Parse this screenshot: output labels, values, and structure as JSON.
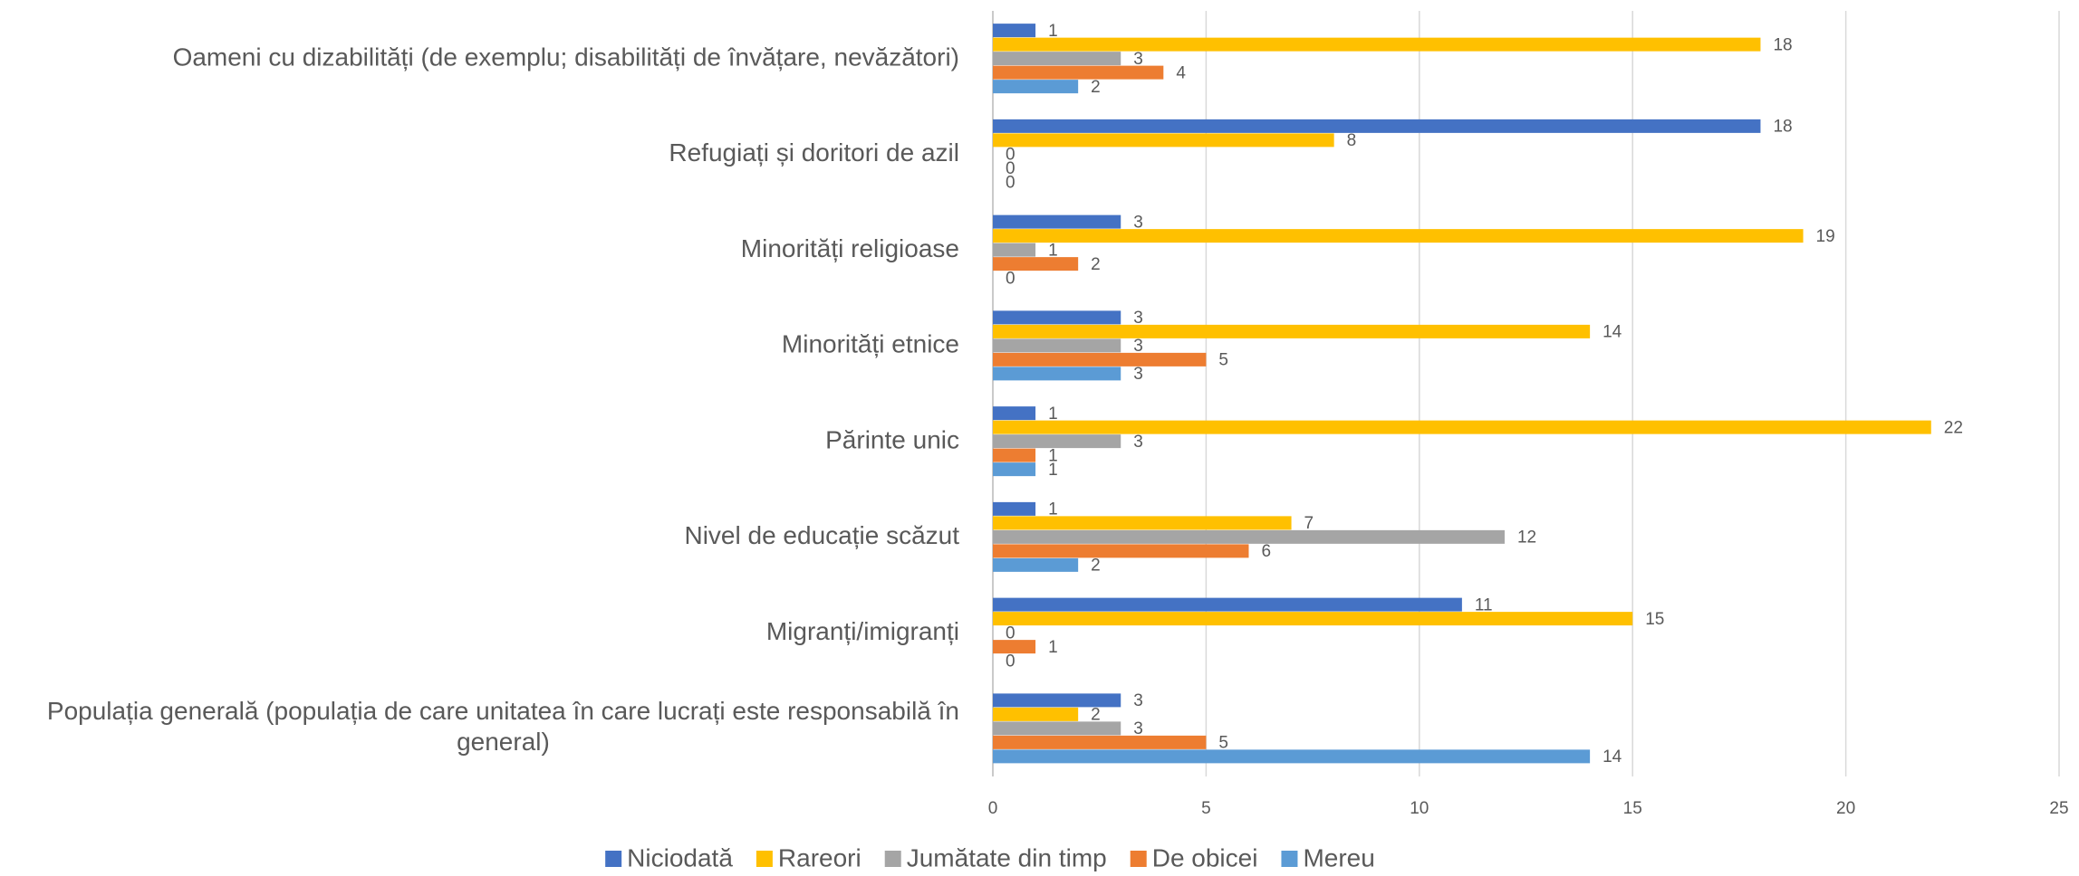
{
  "chart_data": {
    "type": "hbar",
    "categories": [
      "Oameni cu dizabilități (de exemplu; disabilități de învățare, nevăzători)",
      "Refugiați și doritori de azil",
      "Minorități religioase",
      "Minorități etnice",
      "Părinte unic",
      "Nivel de educație scăzut",
      "Migranți/imigranți",
      "Populația generală (populația de care unitatea în care lucrați este responsabilă în general)"
    ],
    "series": [
      {
        "name": "Niciodată",
        "color": "#4472c4",
        "values": [
          1,
          18,
          3,
          3,
          1,
          1,
          11,
          3
        ]
      },
      {
        "name": "Rareori",
        "color": "#ffc000",
        "values": [
          18,
          8,
          19,
          14,
          22,
          7,
          15,
          2
        ]
      },
      {
        "name": "Jumătate din timp",
        "color": "#a5a5a5",
        "values": [
          3,
          0,
          1,
          3,
          3,
          12,
          0,
          3
        ]
      },
      {
        "name": "De obicei",
        "color": "#ed7d31",
        "values": [
          4,
          0,
          2,
          5,
          1,
          6,
          1,
          5
        ]
      },
      {
        "name": "Mereu",
        "color": "#5b9bd5",
        "values": [
          2,
          0,
          0,
          3,
          1,
          2,
          0,
          14
        ]
      }
    ],
    "xlim": [
      0,
      25
    ],
    "xticks": [
      0,
      5,
      10,
      15,
      20,
      25
    ],
    "grid": true,
    "legend": "bottom"
  }
}
